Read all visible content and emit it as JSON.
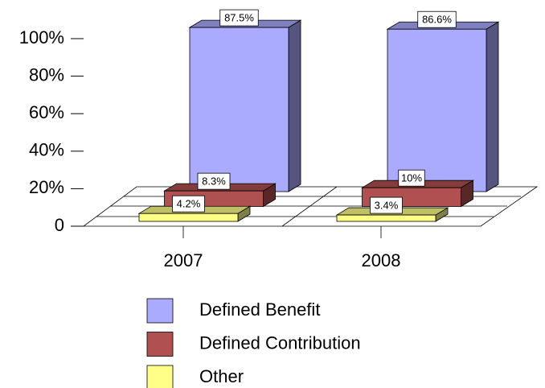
{
  "chart_data": {
    "type": "bar3d",
    "categories": [
      "2007",
      "2008"
    ],
    "series": [
      {
        "name": "Defined Benefit",
        "color": "#aaaaff",
        "values": [
          87.5,
          86.6
        ],
        "value_labels": [
          "87.5%",
          "86.6%"
        ]
      },
      {
        "name": "Defined Contribution",
        "color": "#b05050",
        "values": [
          8.3,
          10
        ],
        "value_labels": [
          "8.3%",
          "10%"
        ]
      },
      {
        "name": "Other",
        "color": "#ffff88",
        "values": [
          4.2,
          3.4
        ],
        "value_labels": [
          "4.2%",
          "3.4%"
        ]
      }
    ],
    "ylim": [
      0,
      100
    ],
    "yticks": [
      0,
      {
        "value": 20,
        "label": "20%"
      },
      {
        "value": 40,
        "label": "40%"
      },
      {
        "value": 60,
        "label": "60%"
      },
      {
        "value": 80,
        "label": "80%"
      },
      {
        "value": 100,
        "label": "100%"
      }
    ]
  }
}
